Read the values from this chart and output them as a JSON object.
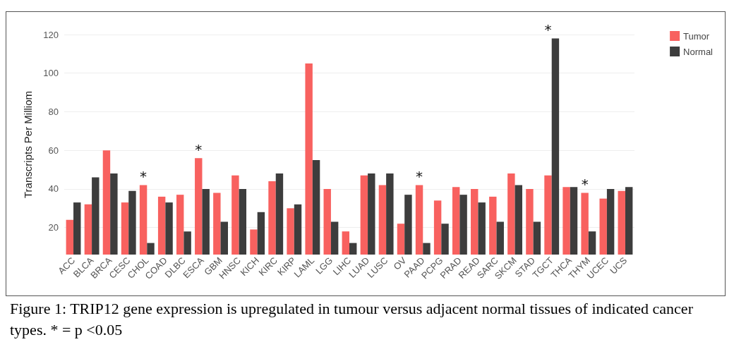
{
  "chart_data": {
    "type": "bar",
    "ylabel": "Transcripts Per Milliom",
    "categories": [
      "ACC",
      "BLCA",
      "BRCA",
      "CESC",
      "CHOL",
      "COAD",
      "DLBC",
      "ESCA",
      "GBM",
      "HNSC",
      "KICH",
      "KIRC",
      "KIRP",
      "LAML",
      "LGG",
      "LIHC",
      "LUAD",
      "LUSC",
      "OV",
      "PAAD",
      "PCPG",
      "PRAD",
      "READ",
      "SARC",
      "SKCM",
      "STAD",
      "TGCT",
      "THCA",
      "THYM",
      "UCEC",
      "UCS"
    ],
    "series": [
      {
        "name": "Tumor",
        "color": "#f8615f",
        "values": [
          24,
          32,
          60,
          33,
          42,
          36,
          37,
          56,
          38,
          47,
          19,
          44,
          30,
          105,
          40,
          18,
          47,
          42,
          22,
          42,
          34,
          41,
          40,
          36,
          48,
          40,
          47,
          41,
          38,
          35,
          39
        ]
      },
      {
        "name": "Normal",
        "color": "#3d3d3d",
        "values": [
          33,
          46,
          48,
          39,
          12,
          33,
          18,
          40,
          23,
          40,
          28,
          48,
          32,
          55,
          23,
          12,
          48,
          48,
          37,
          12,
          22,
          37,
          33,
          23,
          42,
          23,
          118,
          41,
          18,
          40,
          41
        ]
      }
    ],
    "ylim": [
      6,
      120
    ],
    "yticks": [
      20,
      40,
      60,
      80,
      100,
      120
    ],
    "grid": "y",
    "legend": "top right",
    "annotations": [
      {
        "text": "*",
        "x": "CHOL",
        "y": 42
      },
      {
        "text": "*",
        "x": "ESCA",
        "y": 56
      },
      {
        "text": "*",
        "x": "PAAD",
        "y": 42
      },
      {
        "text": "*",
        "x": "TGCT",
        "y": 118
      },
      {
        "text": "*",
        "x": "THYM",
        "y": 38
      },
      "Figure 1: TRIP12 gene expression is upregulated in tumour versus adjacent normal tissues of indicated cancer types. * = p <0.05"
    ]
  }
}
